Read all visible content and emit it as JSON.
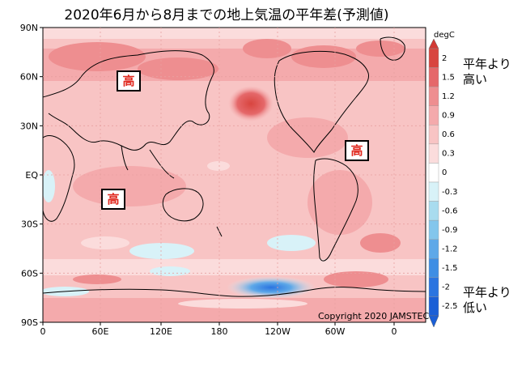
{
  "title": "2020年6月から8月までの地上気温の平年差(予測値)",
  "copyright": "Copyright 2020 JAMSTEC",
  "lat_labels": [
    "90N",
    "60N",
    "30N",
    "EQ",
    "30S",
    "60S",
    "90S"
  ],
  "lon_labels": [
    "0",
    "60E",
    "120E",
    "180",
    "120W",
    "60W",
    "0"
  ],
  "colorbar": {
    "unit": "degC",
    "ticks": [
      "2",
      "1.5",
      "1.2",
      "0.9",
      "0.6",
      "0.3",
      "0",
      "-0.3",
      "-0.6",
      "-0.9",
      "-1.2",
      "-1.5",
      "-2",
      "-2.5"
    ],
    "colors": [
      "#d8453f",
      "#e5686a",
      "#ee8e90",
      "#f4aaac",
      "#f8c4c4",
      "#fbdcdc",
      "#ffffff",
      "#d8f2f8",
      "#a9dcef",
      "#83c6ec",
      "#5ea8e8",
      "#3e8ee4",
      "#2a74e0",
      "#1a5fd6"
    ]
  },
  "legend_high": "平年より\n高い",
  "legend_low": "平年より\n低い",
  "markers": [
    {
      "text": "高"
    },
    {
      "text": "高"
    },
    {
      "text": "高"
    }
  ]
}
